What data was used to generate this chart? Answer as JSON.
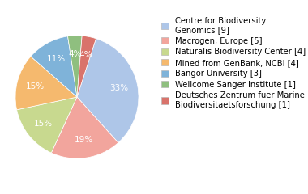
{
  "labels": [
    "Centre for Biodiversity\nGenomics [9]",
    "Macrogen, Europe [5]",
    "Naturalis Biodiversity Center [4]",
    "Mined from GenBank, NCBI [4]",
    "Bangor University [3]",
    "Wellcome Sanger Institute [1]",
    "Deutsches Zentrum fuer Marine\nBiodiversitaetsforschung [1]"
  ],
  "values": [
    9,
    5,
    4,
    4,
    3,
    1,
    1
  ],
  "colors": [
    "#aec6e8",
    "#f2a59d",
    "#c8d98f",
    "#f5b96e",
    "#7fb3d9",
    "#8fbf7f",
    "#d9736b"
  ],
  "startangle": 72,
  "legend_fontsize": 7.2,
  "figsize": [
    3.8,
    2.4
  ],
  "dpi": 100,
  "pct_color": "white",
  "pct_fontsize": 7.5
}
